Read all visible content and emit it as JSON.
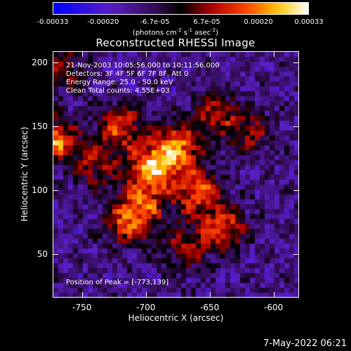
{
  "colorbar": {
    "ticks": [
      "-0.00033",
      "-0.00020",
      "-6.7e-05",
      "6.7e-05",
      "0.00020",
      "0.00033"
    ],
    "tick_values": [
      -0.00033,
      -0.0002,
      -6.7e-05,
      6.7e-05,
      0.0002,
      0.00033
    ],
    "range": [
      -0.00033,
      0.00033
    ],
    "unit_parts": [
      "(photons cm",
      "-2",
      " s",
      "-1",
      " asec",
      "-2",
      ")"
    ]
  },
  "chart_data": {
    "type": "heatmap",
    "title": "Reconstructed RHESSI Image",
    "xlabel": "Heliocentric X (arcsec)",
    "ylabel": "Heliocentric Y (arcsec)",
    "xlim": [
      -773,
      -580
    ],
    "ylim": [
      16,
      209
    ],
    "xticks": [
      -750,
      -700,
      -650,
      -600
    ],
    "yticks": [
      50,
      100,
      150,
      200
    ],
    "annotations": [
      "21-Nov-2003 10:05:56.000 to 10:11:56.000",
      "Detectors: 3F 4F 5F 6F 7F 8F, Att 0",
      "Energy Range: 25.0 - 50.0 keV",
      "Clean     Total counts: 4.55E+03"
    ],
    "peak_label": "Position of Peak = [-773,139]",
    "peak_position": [
      -773,
      139
    ],
    "sources": [
      {
        "x": -695,
        "y": 118,
        "strength": 1.0
      },
      {
        "x": -675,
        "y": 135,
        "strength": 0.85
      },
      {
        "x": -720,
        "y": 150,
        "strength": 0.7
      },
      {
        "x": -660,
        "y": 100,
        "strength": 0.8
      },
      {
        "x": -640,
        "y": 70,
        "strength": 0.75
      },
      {
        "x": -715,
        "y": 75,
        "strength": 0.7
      },
      {
        "x": -700,
        "y": 90,
        "strength": 0.6
      },
      {
        "x": -645,
        "y": 160,
        "strength": 0.55
      },
      {
        "x": -740,
        "y": 120,
        "strength": 0.5
      },
      {
        "x": -765,
        "y": 195,
        "strength": 0.45
      },
      {
        "x": -618,
        "y": 145,
        "strength": 0.45
      },
      {
        "x": -670,
        "y": 55,
        "strength": 0.5
      },
      {
        "x": -773,
        "y": 139,
        "strength": 0.9
      }
    ]
  },
  "footer": {
    "timestamp": "7-May-2022 06:21"
  }
}
